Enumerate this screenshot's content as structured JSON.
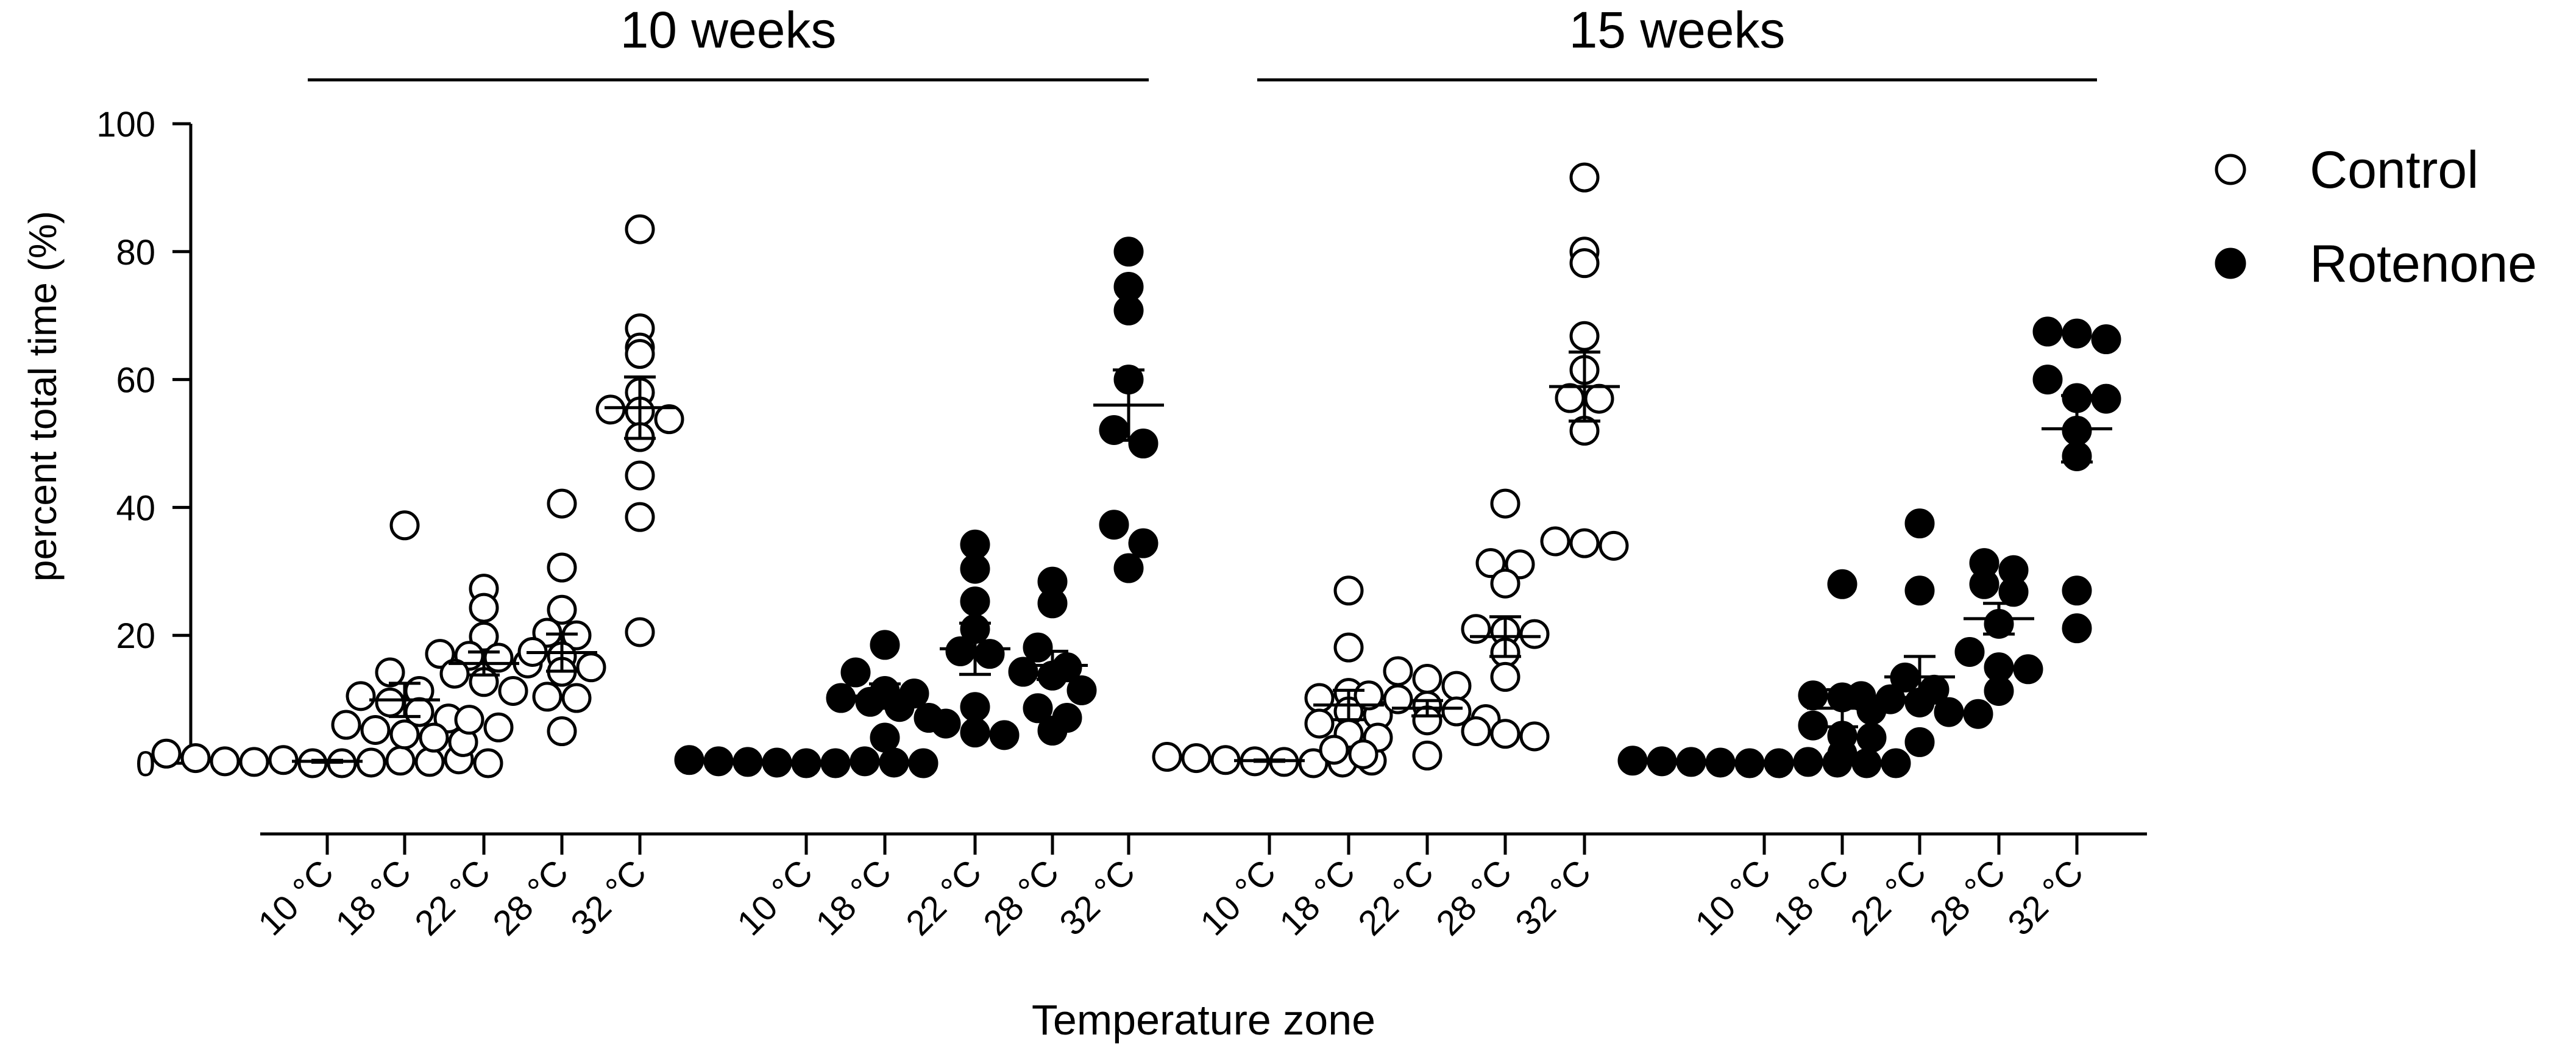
{
  "chart_data": {
    "type": "scatter",
    "title": "",
    "xlabel": "Temperature zone",
    "ylabel": "percent total time (%)",
    "ylim": [
      0,
      100
    ],
    "yticks": [
      "0",
      "20",
      "40",
      "60",
      "80",
      "100"
    ],
    "legend_position": "top-right",
    "groups": [
      {
        "label": "10 weeks",
        "panels": [
          0,
          1
        ]
      },
      {
        "label": "15 weeks",
        "panels": [
          2,
          3
        ]
      }
    ],
    "series": [
      {
        "name": "Control",
        "marker": "open-circle",
        "color": "#000000"
      },
      {
        "name": "Rotenone",
        "marker": "filled-circle",
        "color": "#000000"
      }
    ],
    "panels": [
      {
        "series": "Control",
        "categories": [
          "10 °C",
          "18 °C",
          "22 °C",
          "28 °C",
          "32 °C"
        ],
        "points": [
          [
            1.5,
            0.8,
            0.3,
            0.2,
            0.5,
            0,
            0,
            0.1,
            0.4,
            0.2,
            0.6,
            0
          ],
          [
            37.2,
            14.2,
            11.3,
            10.5,
            9.5,
            8.0,
            7.0,
            6.0,
            5.2,
            4.5,
            4.0,
            3.3
          ],
          [
            27.3,
            24.3,
            19.8,
            17.1,
            16.8,
            16.5,
            15.6,
            14.0,
            12.7,
            11.3,
            6.8,
            5.6
          ],
          [
            40.6,
            30.6,
            24.0,
            20.4,
            20.0,
            17.4,
            16.7,
            15.0,
            14.3,
            10.4,
            10.2,
            5.0
          ],
          [
            83.5,
            68.0,
            65.0,
            64.0,
            58.0,
            55.3,
            55.0,
            53.8,
            51.0,
            45.0,
            38.5,
            20.5
          ]
        ],
        "mean": [
          0.3,
          9.9,
          15.6,
          17.3,
          55.6
        ],
        "sem": [
          0.15,
          2.6,
          1.8,
          2.9,
          4.8
        ]
      },
      {
        "series": "Rotenone",
        "categories": [
          "10 °C",
          "18 °C",
          "22 °C",
          "28 °C",
          "32 °C"
        ],
        "points": [
          [
            0.5,
            0.3,
            0.2,
            0.1,
            0,
            0,
            0.3,
            0.1,
            0
          ],
          [
            18.5,
            14.2,
            11.3,
            10.9,
            10.2,
            9.6,
            8.8,
            7.1,
            4.0
          ],
          [
            34.2,
            30.4,
            25.3,
            21.0,
            17.5,
            17.1,
            8.8,
            6.2,
            4.8,
            4.4
          ],
          [
            28.4,
            25.0,
            18.1,
            15.0,
            14.3,
            13.7,
            11.4,
            8.6,
            7.1,
            5.1
          ],
          [
            80.0,
            74.5,
            70.8,
            60.0,
            52.1,
            50.0,
            37.3,
            34.4,
            30.5
          ]
        ],
        "mean": [
          0.1,
          10.5,
          17.9,
          15.3,
          56.0
        ],
        "sem": [
          0.05,
          1.9,
          4.0,
          2.2,
          5.5
        ]
      },
      {
        "series": "Control",
        "categories": [
          "10 °C",
          "18 °C",
          "22 °C",
          "28 °C",
          "32 °C"
        ],
        "points": [
          [
            1.0,
            0.8,
            0.5,
            0.3,
            0.2,
            0,
            0.1,
            0.4
          ],
          [
            27.0,
            18.1,
            11.0,
            10.2,
            8.1,
            7.5,
            6.2,
            4.6,
            4.0,
            2.1,
            1.4
          ],
          [
            14.4,
            13.2,
            12.1,
            10.6,
            10.0,
            9.0,
            8.1,
            6.9,
            6.7,
            1.2
          ],
          [
            40.6,
            31.3,
            31.1,
            28.1,
            21.0,
            20.6,
            20.2,
            17.3,
            13.5,
            5.0,
            4.6,
            4.2
          ],
          [
            91.6,
            80.0,
            78.2,
            66.8,
            61.5,
            57.1,
            57.0,
            52.0,
            34.7,
            34.4,
            34.0
          ]
        ],
        "mean": [
          0.4,
          9.1,
          8.6,
          19.8,
          58.9
        ],
        "sem": [
          0.1,
          2.3,
          1.2,
          3.1,
          5.4
        ]
      },
      {
        "series": "Rotenone",
        "categories": [
          "10 °C",
          "18 °C",
          "22 °C",
          "28 °C",
          "32 °C"
        ],
        "points": [
          [
            0.4,
            0.3,
            0.2,
            0.1,
            0,
            0,
            0.2,
            0.1,
            0,
            0
          ],
          [
            28.0,
            10.6,
            10.3,
            8.3,
            5.9,
            4.3,
            4.0,
            1.5
          ],
          [
            37.5,
            27.0,
            13.4,
            11.5,
            10.5,
            10.0,
            9.5,
            8.0,
            7.7,
            3.3
          ],
          [
            31.3,
            30.2,
            28.0,
            26.8,
            21.8,
            17.4,
            15.0,
            14.7,
            11.3
          ],
          [
            67.5,
            67.2,
            66.3,
            60.0,
            57.1,
            57.0,
            52.0,
            48.0,
            27.0,
            21.1
          ]
        ],
        "mean": [
          0.1,
          8.6,
          13.5,
          22.6,
          52.3
        ],
        "sem": [
          0.05,
          2.9,
          3.2,
          2.4,
          5.2
        ]
      }
    ]
  }
}
